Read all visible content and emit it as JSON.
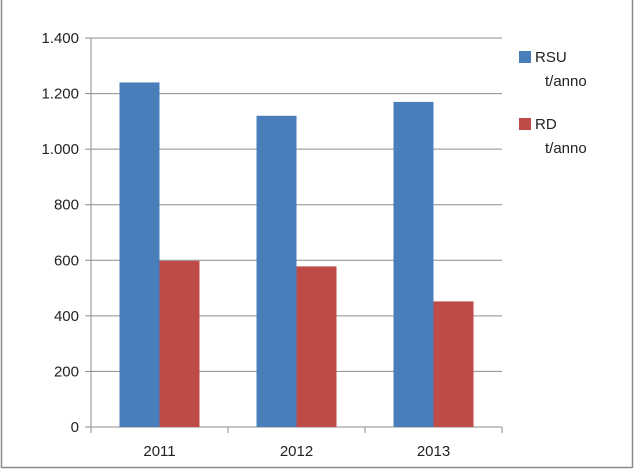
{
  "chart_data": {
    "type": "bar",
    "title": "",
    "xlabel": "",
    "ylabel": "",
    "categories": [
      "2011",
      "2012",
      "2013"
    ],
    "series": [
      {
        "name": "RSU t/anno",
        "name_lines": [
          "RSU",
          "t/anno"
        ],
        "color": "#4a7ebb",
        "values": [
          1240,
          1120,
          1170
        ]
      },
      {
        "name": "RD t/anno",
        "name_lines": [
          "RD",
          "t/anno"
        ],
        "color": "#be4b48",
        "values": [
          598,
          578,
          452
        ]
      }
    ],
    "ylim": [
      0,
      1400
    ],
    "yticks": [
      0,
      200,
      400,
      600,
      800,
      1000,
      1200,
      1400
    ],
    "ytick_labels": [
      "0",
      "200",
      "400",
      "600",
      "800",
      "1.000",
      "1.200",
      "1.400"
    ],
    "grid": true,
    "legend_position": "right"
  }
}
